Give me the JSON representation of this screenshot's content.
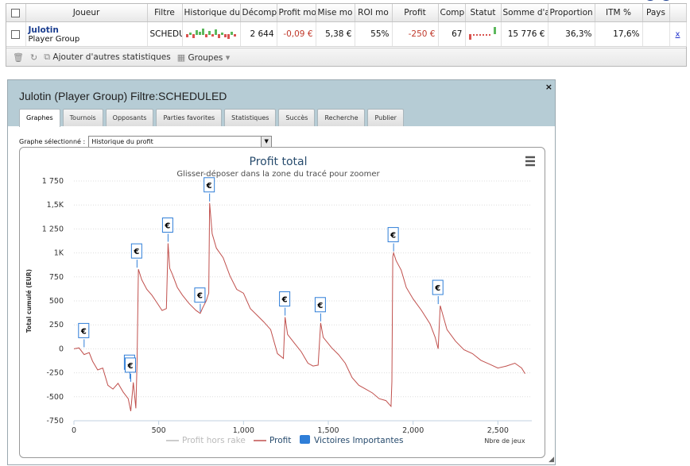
{
  "grid": {
    "columns": [
      "",
      "Joueur",
      "Filtre",
      "Historique du",
      "Décomp",
      "Profit mo",
      "Mise mo",
      "ROI mo",
      "Profit",
      "Comp",
      "Statut",
      "Somme d'a",
      "Proportion",
      "ITM %",
      "Pays",
      ""
    ],
    "row": {
      "player_name": "Julotin",
      "player_group": "Player Group",
      "filter": "SCHEDU",
      "count": "2 644",
      "avg_profit": "-0,09 €",
      "avg_stake": "5,38 €",
      "roi": "55%",
      "profit": "-250 €",
      "comp": "67",
      "sum": "15 776 €",
      "proportion": "36,3%",
      "itm": "17,6%",
      "country": "",
      "remove": "x"
    },
    "toolbar": {
      "add_stats_label": "Ajouter d'autres statistiques",
      "groups_label": "Groupes"
    }
  },
  "panel": {
    "title": "Julotin (Player Group) Filtre:SCHEDULED",
    "close_label": "×",
    "tabs": [
      "Graphes",
      "Tournois",
      "Opposants",
      "Parties favorites",
      "Statistiques",
      "Succès",
      "Recherche",
      "Publier"
    ],
    "active_tab": 0,
    "graph_select_label": "Graphe sélectionné :",
    "graph_select_value": "Historique du profit"
  },
  "chart_data": {
    "type": "line",
    "title": "Profit total",
    "subtitle": "Glisser-déposer dans la zone du tracé pour zoomer",
    "ylabel": "Total cumulé (EUR)",
    "xlabel": "Nbre de jeux",
    "xlim": [
      0,
      2700
    ],
    "ylim": [
      -750,
      1750
    ],
    "x_ticks": [
      "0",
      "500",
      "1,000",
      "1,500",
      "2,000",
      "2,500"
    ],
    "x_tick_values": [
      0,
      500,
      1000,
      1500,
      2000,
      2500
    ],
    "y_ticks": [
      "1 750",
      "1,5K",
      "1 250",
      "1K",
      "750",
      "500",
      "250",
      "0",
      "-250",
      "-500",
      "-750"
    ],
    "y_tick_values": [
      1750,
      1500,
      1250,
      1000,
      750,
      500,
      250,
      0,
      -250,
      -500,
      -750
    ],
    "grid": true,
    "legend_position": "bottom",
    "colors": {
      "profit": "#c0504d",
      "profit_hors_rake": "#cccccc",
      "victoires": "#2f7ed8"
    },
    "series": [
      {
        "name": "Profit hors rake",
        "values": []
      },
      {
        "name": "Profit",
        "x": [
          0,
          30,
          60,
          90,
          110,
          140,
          170,
          200,
          230,
          260,
          290,
          320,
          335,
          350,
          365,
          372,
          380,
          400,
          430,
          460,
          490,
          520,
          545,
          555,
          565,
          580,
          610,
          640,
          680,
          720,
          745,
          760,
          780,
          795,
          800,
          815,
          840,
          880,
          920,
          960,
          1000,
          1040,
          1080,
          1120,
          1160,
          1200,
          1235,
          1245,
          1260,
          1300,
          1340,
          1380,
          1410,
          1440,
          1455,
          1470,
          1520,
          1560,
          1600,
          1640,
          1680,
          1720,
          1760,
          1800,
          1840,
          1870,
          1875,
          1880,
          1885,
          1900,
          1930,
          1960,
          2000,
          2050,
          2100,
          2130,
          2148,
          2160,
          2200,
          2250,
          2300,
          2350,
          2400,
          2450,
          2500,
          2550,
          2600,
          2640,
          2660
        ],
        "values": [
          0,
          10,
          -60,
          -40,
          -130,
          -220,
          -200,
          -380,
          -420,
          -360,
          -450,
          -520,
          -650,
          -350,
          -620,
          -150,
          830,
          720,
          620,
          560,
          480,
          400,
          420,
          1100,
          840,
          780,
          640,
          560,
          470,
          400,
          370,
          430,
          500,
          580,
          1520,
          1200,
          1050,
          950,
          760,
          620,
          580,
          420,
          350,
          280,
          200,
          -50,
          -100,
          330,
          150,
          60,
          -30,
          -150,
          -180,
          -170,
          270,
          120,
          10,
          -60,
          -150,
          -300,
          -380,
          -420,
          -460,
          -520,
          -540,
          -600,
          -340,
          960,
          1000,
          920,
          820,
          640,
          520,
          400,
          260,
          120,
          0,
          450,
          200,
          80,
          -10,
          -50,
          -120,
          -160,
          -200,
          -180,
          -150,
          -200,
          -260
        ]
      }
    ],
    "markers": {
      "name": "Victoires Importantes",
      "label": "€",
      "points": [
        {
          "x": 60,
          "y": 0
        },
        {
          "x": 330,
          "y": -330
        },
        {
          "x": 335,
          "y": -360
        },
        {
          "x": 372,
          "y": 830
        },
        {
          "x": 555,
          "y": 1100
        },
        {
          "x": 745,
          "y": 370
        },
        {
          "x": 800,
          "y": 1520
        },
        {
          "x": 1245,
          "y": 330
        },
        {
          "x": 1455,
          "y": 270
        },
        {
          "x": 1885,
          "y": 1000
        },
        {
          "x": 2148,
          "y": 450
        }
      ]
    }
  }
}
